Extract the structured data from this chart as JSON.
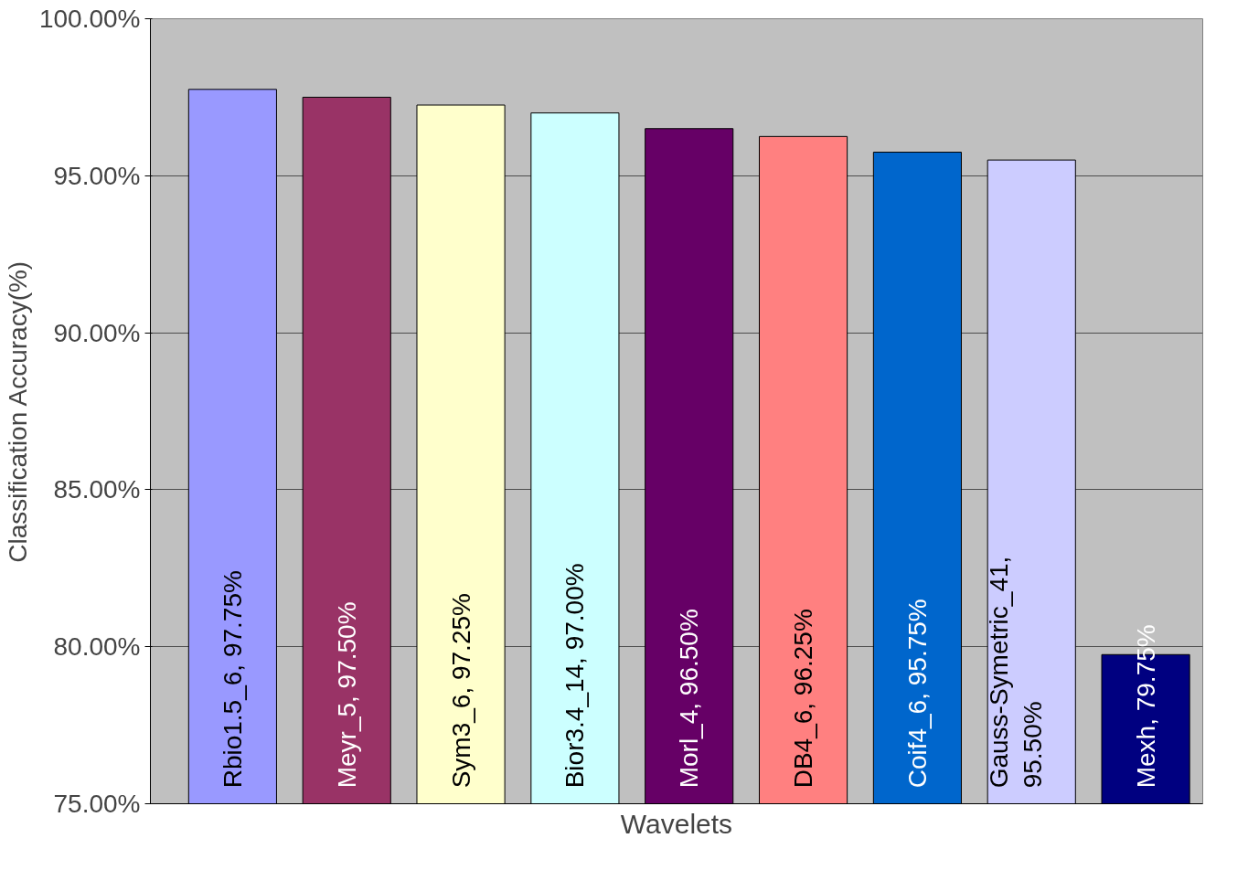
{
  "chart_data": {
    "type": "bar",
    "xlabel": "Wavelets",
    "ylabel": "Classification Accuracy(%)",
    "categories": [
      null,
      null,
      null,
      null,
      null,
      null,
      null,
      null,
      null
    ],
    "values": [
      97.75,
      97.5,
      97.25,
      97.0,
      96.5,
      96.25,
      95.75,
      95.5,
      79.75
    ],
    "colors": [
      "#9999ff",
      "#993366",
      "#ffffcc",
      "#ccffff",
      "#660066",
      "#ff8080",
      "#0066cc",
      "#ccccff",
      "#000080"
    ],
    "value_labels": [
      "Rbio1.5_6, 97.75%",
      "Meyr_5, 97.50%",
      "Sym3_6, 97.25%",
      "Bior3.4_14, 97.00%",
      "Morl_4, 96.50%",
      "DB4_6, 96.25%",
      "Coif4_6, 95.75%",
      "Gauss-Symetric_41,\n95.50%",
      "Mexh, 79.75%"
    ],
    "ylim": [
      75,
      100
    ],
    "yticks": [
      {
        "value": 75,
        "label": "75.00%"
      },
      {
        "value": 80,
        "label": "80.00%"
      },
      {
        "value": 85,
        "label": "85.00%"
      },
      {
        "value": 90,
        "label": "90.00%"
      },
      {
        "value": 95,
        "label": "95.00%"
      },
      {
        "value": 100,
        "label": "100.00%"
      }
    ],
    "grid": "y"
  }
}
